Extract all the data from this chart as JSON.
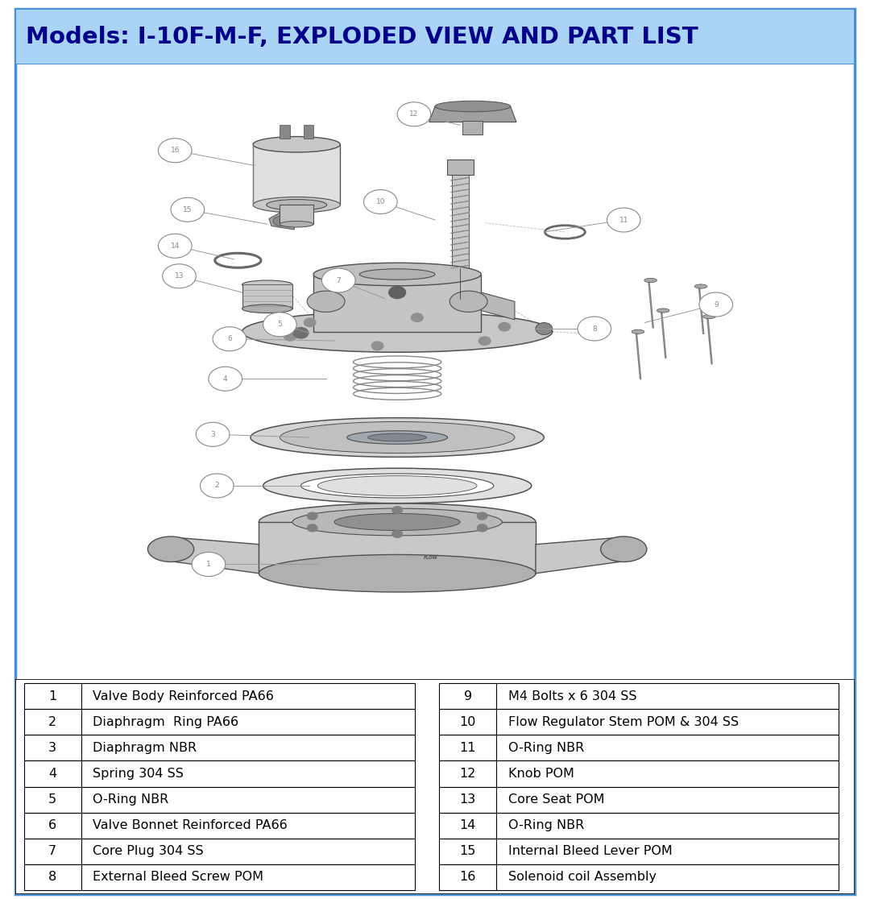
{
  "title": "Models: I-10F-M-F, EXPLODED VIEW AND PART LIST",
  "title_bg_color": "#aad4f5",
  "title_text_color": "#00008B",
  "border_color": "#4a90d9",
  "fig_bg_color": "#ffffff",
  "parts_left": [
    {
      "num": "1",
      "desc": "Valve Body Reinforced PA66"
    },
    {
      "num": "2",
      "desc": "Diaphragm  Ring PA66"
    },
    {
      "num": "3",
      "desc": "Diaphragm NBR"
    },
    {
      "num": "4",
      "desc": "Spring 304 SS"
    },
    {
      "num": "5",
      "desc": "O-Ring NBR"
    },
    {
      "num": "6",
      "desc": "Valve Bonnet Reinforced PA66"
    },
    {
      "num": "7",
      "desc": "Core Plug 304 SS"
    },
    {
      "num": "8",
      "desc": "External Bleed Screw POM"
    }
  ],
  "parts_right": [
    {
      "num": "9",
      "desc": "M4 Bolts x 6 304 SS"
    },
    {
      "num": "10",
      "desc": "Flow Regulator Stem POM & 304 SS"
    },
    {
      "num": "11",
      "desc": "O-Ring NBR"
    },
    {
      "num": "12",
      "desc": "Knob POM"
    },
    {
      "num": "13",
      "desc": "Core Seat POM"
    },
    {
      "num": "14",
      "desc": "O-Ring NBR"
    },
    {
      "num": "15",
      "desc": "Internal Bleed Lever POM"
    },
    {
      "num": "16",
      "desc": "Solenoid coil Assembly"
    }
  ],
  "table_border_color": "#000000",
  "table_text_color": "#000000",
  "table_font_size": 11.5,
  "outer_border_color": "#4a90d9",
  "outer_border_linewidth": 2.5,
  "callout_color": "#888888",
  "line_color": "#999999",
  "part_color_dark": "#505050",
  "part_color_mid": "#888888",
  "part_color_light": "#c8c8c8",
  "part_color_vlight": "#e0e0e0"
}
